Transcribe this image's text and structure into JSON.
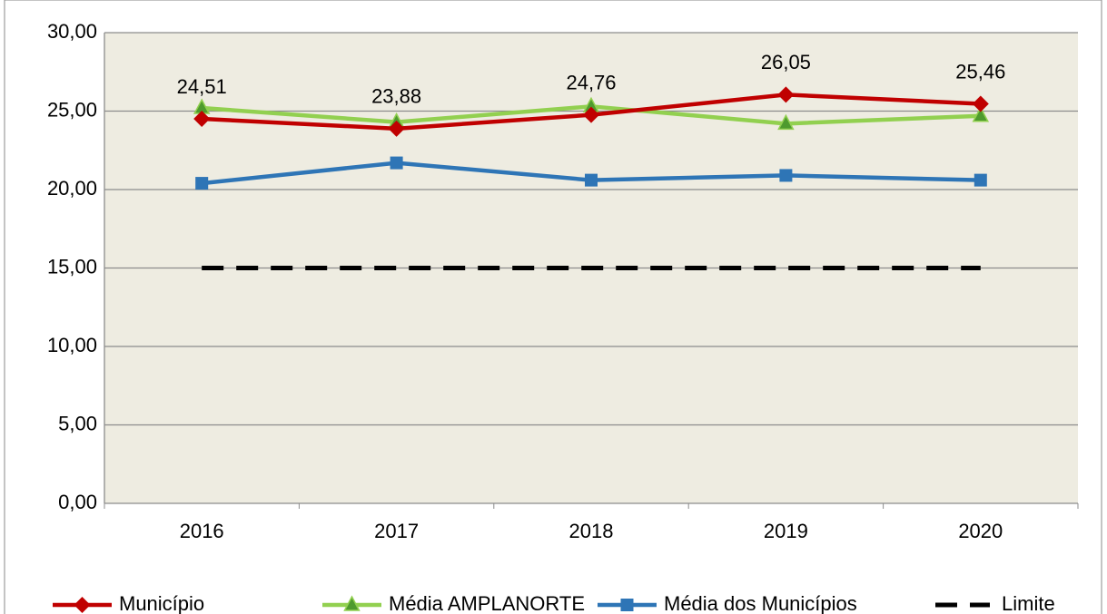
{
  "chart_data": {
    "type": "line",
    "categories": [
      "2016",
      "2017",
      "2018",
      "2019",
      "2020"
    ],
    "series": [
      {
        "name": "Município",
        "color": "#c00000",
        "marker": "diamond",
        "values": [
          24.51,
          23.88,
          24.76,
          26.05,
          25.46
        ],
        "value_labels": [
          "24,51",
          "23,88",
          "24,76",
          "26,05",
          "25,46"
        ]
      },
      {
        "name": "Média AMPLANORTE",
        "color": "#92d050",
        "marker": "triangle",
        "values": [
          25.2,
          24.3,
          25.3,
          24.2,
          24.7
        ]
      },
      {
        "name": "Média dos Municípios",
        "color": "#2e75b6",
        "marker": "square",
        "values": [
          20.4,
          21.7,
          20.6,
          20.9,
          20.6
        ]
      },
      {
        "name": "Limite",
        "color": "#000000",
        "dash": true,
        "values": [
          15,
          15,
          15,
          15,
          15
        ]
      }
    ],
    "ylim": [
      0,
      30
    ],
    "yticks": [
      {
        "value": 0,
        "label": "0,00"
      },
      {
        "value": 5,
        "label": "5,00"
      },
      {
        "value": 10,
        "label": "10,00"
      },
      {
        "value": 15,
        "label": "15,00"
      },
      {
        "value": 20,
        "label": "20,00"
      },
      {
        "value": 25,
        "label": "25,00"
      },
      {
        "value": 30,
        "label": "30,00"
      }
    ],
    "grid": true,
    "legend": "bottom"
  }
}
